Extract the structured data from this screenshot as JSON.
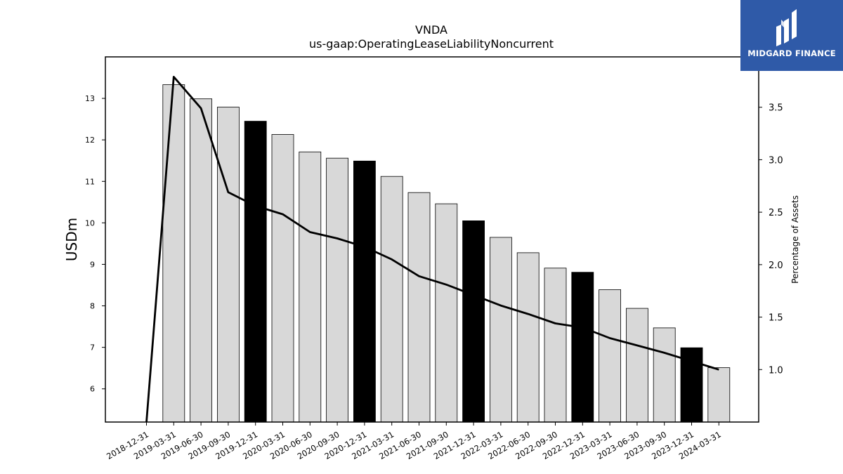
{
  "chart_data": {
    "type": "bar",
    "title": "VNDA",
    "subtitle": "us-gaap:OperatingLeaseLiabilityNoncurrent",
    "ylabel": "USDm",
    "y2label": "Percentage of Assets",
    "ylim": [
      5.2,
      14.0
    ],
    "y2lim": [
      0.5,
      3.98
    ],
    "yticks": [
      6,
      7,
      8,
      9,
      10,
      11,
      12,
      13
    ],
    "y2ticks": [
      1.0,
      1.5,
      2.0,
      2.5,
      3.0,
      3.5
    ],
    "categories": [
      "2018-12-31",
      "2019-03-31",
      "2019-06-30",
      "2019-09-30",
      "2019-12-31",
      "2020-03-31",
      "2020-06-30",
      "2020-09-30",
      "2020-12-31",
      "2021-03-31",
      "2021-06-30",
      "2021-09-30",
      "2021-12-31",
      "2022-03-31",
      "2022-06-30",
      "2022-09-30",
      "2022-12-31",
      "2023-03-31",
      "2023-06-30",
      "2023-09-30",
      "2023-12-31",
      "2024-03-31"
    ],
    "bars": [
      null,
      13.33,
      12.99,
      12.79,
      12.45,
      12.13,
      11.71,
      11.56,
      11.49,
      11.12,
      10.73,
      10.46,
      10.05,
      9.65,
      9.28,
      8.91,
      8.81,
      8.39,
      7.94,
      7.47,
      6.99,
      6.51
    ],
    "highlight": [
      false,
      false,
      false,
      false,
      true,
      false,
      false,
      false,
      true,
      false,
      false,
      false,
      true,
      false,
      false,
      false,
      true,
      false,
      false,
      false,
      true,
      false
    ],
    "line": [
      0.5,
      3.79,
      3.49,
      2.69,
      2.56,
      2.48,
      2.31,
      2.25,
      2.17,
      2.05,
      1.89,
      1.81,
      1.71,
      1.61,
      1.53,
      1.44,
      1.4,
      1.3,
      1.23,
      1.16,
      1.08,
      1.0
    ],
    "colors": {
      "bar": "#d8d8d8",
      "bar_highlight": "#000000",
      "line": "#000000"
    }
  },
  "logo": {
    "text": "MIDGARD FINANCE"
  }
}
